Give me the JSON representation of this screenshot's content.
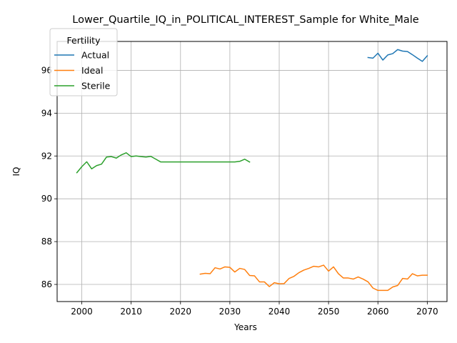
{
  "chart_data": {
    "type": "line",
    "title": "Lower_Quartile_IQ_in_POLITICAL_INTEREST_Sample for White_Male",
    "xlabel": "Years",
    "ylabel": "IQ",
    "xlim": [
      1995,
      2074
    ],
    "ylim": [
      85.2,
      97.35
    ],
    "xticks": [
      2000,
      2010,
      2020,
      2030,
      2040,
      2050,
      2060,
      2070
    ],
    "yticks": [
      86,
      88,
      90,
      92,
      94,
      96
    ],
    "grid": true,
    "legend": {
      "title": "Fertility",
      "placement": "top-left"
    },
    "series": [
      {
        "name": "Actual",
        "color": "#1f77b4",
        "x": [
          2058,
          2059,
          2060,
          2061,
          2062,
          2063,
          2064,
          2065,
          2066,
          2067,
          2068,
          2069,
          2070
        ],
        "y": [
          96.6,
          96.57,
          96.8,
          96.48,
          96.72,
          96.78,
          96.97,
          96.9,
          96.88,
          96.73,
          96.57,
          96.42,
          96.68
        ]
      },
      {
        "name": "Ideal",
        "color": "#ff7f0e",
        "x": [
          2024,
          2025,
          2026,
          2027,
          2028,
          2029,
          2030,
          2031,
          2032,
          2033,
          2034,
          2035,
          2036,
          2037,
          2038,
          2039,
          2040,
          2041,
          2042,
          2043,
          2044,
          2045,
          2046,
          2047,
          2048,
          2049,
          2050,
          2051,
          2052,
          2053,
          2054,
          2055,
          2056,
          2057,
          2058,
          2059,
          2060,
          2061,
          2062,
          2063,
          2064,
          2065,
          2066,
          2067,
          2068,
          2069,
          2070
        ],
        "y": [
          86.48,
          86.52,
          86.5,
          86.78,
          86.72,
          86.82,
          86.8,
          86.58,
          86.75,
          86.7,
          86.42,
          86.4,
          86.12,
          86.12,
          85.9,
          86.08,
          86.03,
          86.04,
          86.28,
          86.38,
          86.55,
          86.67,
          86.75,
          86.85,
          86.82,
          86.9,
          86.62,
          86.82,
          86.5,
          86.3,
          86.3,
          86.25,
          86.35,
          86.25,
          86.12,
          85.83,
          85.72,
          85.72,
          85.72,
          85.88,
          85.95,
          86.28,
          86.25,
          86.5,
          86.4,
          86.43,
          86.43
        ]
      },
      {
        "name": "Sterile",
        "color": "#2ca02c",
        "x": [
          1999,
          2000,
          2001,
          2002,
          2003,
          2004,
          2005,
          2006,
          2007,
          2008,
          2009,
          2010,
          2011,
          2012,
          2013,
          2014,
          2015,
          2016,
          2017,
          2018,
          2019,
          2020,
          2021,
          2022,
          2023,
          2024,
          2025,
          2026,
          2027,
          2028,
          2029,
          2030,
          2031,
          2032,
          2033,
          2034
        ],
        "y": [
          91.22,
          91.5,
          91.73,
          91.4,
          91.55,
          91.62,
          91.95,
          91.97,
          91.9,
          92.05,
          92.15,
          91.97,
          92.0,
          91.97,
          91.95,
          91.98,
          91.85,
          91.72,
          91.72,
          91.72,
          91.72,
          91.72,
          91.72,
          91.72,
          91.72,
          91.72,
          91.72,
          91.72,
          91.72,
          91.72,
          91.72,
          91.72,
          91.72,
          91.75,
          91.85,
          91.72
        ]
      }
    ]
  }
}
